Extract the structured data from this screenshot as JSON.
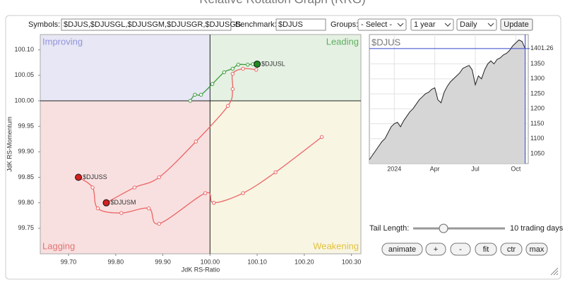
{
  "header": {
    "title": "Relative Rotation Graph (RRG)"
  },
  "controls": {
    "symbols_label": "Symbols:",
    "symbols_value": "$DJUS,$DJUSGL,$DJUSGM,$DJUSGR,$DJUSGS",
    "benchmark_label": "Benchmark:",
    "benchmark_value": "$DJUS",
    "groups_label": "Groups:",
    "groups_value": "- Select -",
    "period_value": "1 year",
    "frequency_value": "Daily",
    "update": "Update",
    "tail_length_label": "Tail Length:",
    "tail_length_value": "10 trading days",
    "buttons": [
      "animate",
      "+",
      "-",
      "fit",
      "ctr",
      "max"
    ]
  },
  "chart_data": [
    {
      "type": "scatter",
      "x_label": "JdK RS-Ratio",
      "y_label": "JdK RS-Momentum",
      "xlim": [
        99.64,
        100.32
      ],
      "ylim": [
        99.7,
        100.13
      ],
      "center": [
        100,
        100
      ],
      "xticks": [
        {
          "value": 99.7,
          "label": "99.70"
        },
        {
          "value": 99.8,
          "label": "99.80"
        },
        {
          "value": 99.9,
          "label": "99.90"
        },
        {
          "value": 100,
          "label": "100.00"
        },
        {
          "value": 100.1,
          "label": "100.10"
        },
        {
          "value": 100.2,
          "label": "100.20"
        },
        {
          "value": 100.3,
          "label": "100.30"
        }
      ],
      "yticks": [
        {
          "value": 99.75,
          "label": "99.75"
        },
        {
          "value": 99.8,
          "label": "99.80"
        },
        {
          "value": 99.85,
          "label": "99.85"
        },
        {
          "value": 99.9,
          "label": "99.90"
        },
        {
          "value": 99.95,
          "label": "99.95"
        },
        {
          "value": 100,
          "label": "100.00"
        },
        {
          "value": 100.05,
          "label": "100.05"
        },
        {
          "value": 100.1,
          "label": "100.10"
        }
      ],
      "quadrants": [
        {
          "name": "Improving",
          "color": "#e7e7f5",
          "label_color": "#9393dc"
        },
        {
          "name": "Leading",
          "color": "#e5f1e3",
          "label_color": "#5fae5f"
        },
        {
          "name": "Lagging",
          "color": "#f8e0e0",
          "label_color": "#e37474"
        },
        {
          "name": "Weakening",
          "color": "#f8f5e3",
          "label_color": "#e2c23e"
        }
      ],
      "series": [
        {
          "name": "$DJUSL",
          "color": "#3c9c3c",
          "head_color": "#1f8a1f",
          "x": [
            99.958,
            99.968,
            99.981,
            100.005,
            100.03,
            100.048,
            100.06,
            100.08,
            100.091,
            100.1
          ],
          "values": [
            100.0,
            100.012,
            100.012,
            100.033,
            100.056,
            100.063,
            100.071,
            100.071,
            100.072,
            100.072
          ]
        },
        {
          "name": "$DJUSM",
          "color": "#ec6464",
          "head_color": "#d42020",
          "x": [
            100.098,
            100.07,
            100.048,
            100.048,
            100.038,
            99.97,
            99.892,
            99.84,
            99.78
          ],
          "values": [
            100.061,
            100.063,
            100.053,
            100.023,
            99.99,
            99.92,
            99.85,
            99.83,
            99.8
          ]
        },
        {
          "name": "$DJUSS",
          "color": "#ec6464",
          "head_color": "#d42020",
          "x": [
            100.237,
            100.139,
            100.07,
            100.008,
            99.99,
            99.892,
            99.87,
            99.812,
            99.762,
            99.751,
            99.721
          ],
          "values": [
            99.929,
            99.86,
            99.819,
            99.8,
            99.819,
            99.759,
            99.789,
            99.78,
            99.789,
            99.83,
            99.85
          ]
        }
      ]
    },
    {
      "type": "area",
      "title": "$DJUS",
      "color": "#222222",
      "fill": "#d6d6d6",
      "xlim": [
        0,
        51
      ],
      "ylim": [
        1017,
        1448
      ],
      "xticks": [
        {
          "value": 8,
          "label": "2024"
        },
        {
          "value": 21,
          "label": "Apr"
        },
        {
          "value": 34,
          "label": "Jul"
        },
        {
          "value": 47,
          "label": "Oct"
        }
      ],
      "yticks": [
        1050,
        1100,
        1150,
        1200,
        1250,
        1300,
        1350
      ],
      "values": [
        1030,
        1045,
        1060,
        1075,
        1090,
        1100,
        1120,
        1140,
        1150,
        1155,
        1140,
        1160,
        1175,
        1190,
        1200,
        1215,
        1230,
        1240,
        1250,
        1255,
        1265,
        1270,
        1230,
        1220,
        1255,
        1275,
        1290,
        1300,
        1310,
        1320,
        1335,
        1340,
        1345,
        1330,
        1280,
        1310,
        1300,
        1330,
        1350,
        1360,
        1350,
        1365,
        1370,
        1380,
        1385,
        1395,
        1410,
        1420,
        1430,
        1425,
        1401.26
      ]
    }
  ]
}
